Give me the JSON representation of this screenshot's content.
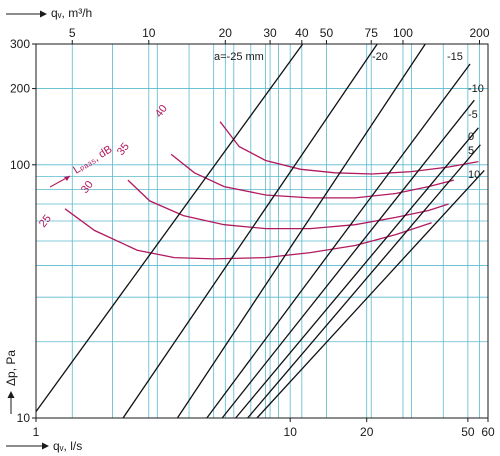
{
  "chart_data": {
    "type": "line",
    "title": "",
    "x_axis_bottom": {
      "label": "qᵥ, l/s",
      "scale": "log",
      "range": [
        1,
        60
      ],
      "ticks": [
        {
          "v": 1,
          "label": "1"
        },
        {
          "v": 10,
          "label": "10"
        },
        {
          "v": 20,
          "label": "20"
        },
        {
          "v": 50,
          "label": "50"
        },
        {
          "v": 60,
          "label": "60"
        }
      ]
    },
    "x_axis_top": {
      "label": "qᵥ, m³/h",
      "scale": "log",
      "range": [
        3.6,
        216
      ],
      "ticks": [
        {
          "v": 5,
          "label": "5"
        },
        {
          "v": 10,
          "label": "10"
        },
        {
          "v": 20,
          "label": "20"
        },
        {
          "v": 30,
          "label": "30"
        },
        {
          "v": 40,
          "label": "40"
        },
        {
          "v": 50,
          "label": "50"
        },
        {
          "v": 75,
          "label": "75"
        },
        {
          "v": 100,
          "label": "100"
        },
        {
          "v": 200,
          "label": "200"
        }
      ]
    },
    "y_axis": {
      "label": "Δp, Pa",
      "scale": "log",
      "range": [
        10,
        300
      ],
      "ticks": [
        {
          "v": 10,
          "label": "10"
        },
        {
          "v": 100,
          "label": "100"
        },
        {
          "v": 200,
          "label": "200"
        },
        {
          "v": 300,
          "label": "300"
        }
      ]
    },
    "grid": true,
    "damper_lines": [
      {
        "label": "a=-25 mm",
        "points": [
          [
            1,
            10.6
          ],
          [
            11.2,
            300
          ]
        ]
      },
      {
        "label": "-20",
        "points": [
          [
            2.2,
            10
          ],
          [
            22,
            300
          ]
        ]
      },
      {
        "label": "-15",
        "points": [
          [
            3.6,
            10
          ],
          [
            34,
            300
          ]
        ]
      },
      {
        "label": "-10",
        "points": [
          [
            4.7,
            10
          ],
          [
            51,
            250
          ]
        ]
      },
      {
        "label": "-5",
        "points": [
          [
            5.4,
            10
          ],
          [
            53,
            180
          ]
        ]
      },
      {
        "label": "0",
        "points": [
          [
            6.1,
            10
          ],
          [
            55,
            140
          ]
        ]
      },
      {
        "label": "5",
        "points": [
          [
            6.8,
            10
          ],
          [
            56,
            120
          ]
        ]
      },
      {
        "label": "10",
        "points": [
          [
            7.4,
            10
          ],
          [
            58,
            95
          ]
        ]
      }
    ],
    "sound_level": {
      "label": "Lₚₐ₃₅, dB",
      "series": [
        {
          "name": "25",
          "points": [
            [
              1.3,
              67
            ],
            [
              1.7,
              55
            ],
            [
              2.5,
              46
            ],
            [
              3.5,
              43
            ],
            [
              5,
              42.5
            ],
            [
              8,
              43
            ],
            [
              12,
              45
            ],
            [
              18,
              48
            ],
            [
              26,
              53
            ],
            [
              36,
              59
            ]
          ]
        },
        {
          "name": "30",
          "points": [
            [
              2.3,
              87
            ],
            [
              2.8,
              72
            ],
            [
              3.8,
              63
            ],
            [
              5.5,
              58
            ],
            [
              8,
              56
            ],
            [
              12,
              56
            ],
            [
              18,
              58
            ],
            [
              26,
              62
            ],
            [
              35,
              66
            ],
            [
              42,
              70
            ]
          ]
        },
        {
          "name": "35",
          "points": [
            [
              3.4,
              110
            ],
            [
              4.2,
              93
            ],
            [
              5.5,
              82
            ],
            [
              8,
              76
            ],
            [
              12,
              74
            ],
            [
              18,
              74
            ],
            [
              26,
              77
            ],
            [
              35,
              82
            ],
            [
              44,
              87
            ]
          ]
        },
        {
          "name": "40",
          "points": [
            [
              5.3,
              148
            ],
            [
              6.3,
              118
            ],
            [
              8,
              104
            ],
            [
              11,
              96
            ],
            [
              15,
              93
            ],
            [
              21,
              92
            ],
            [
              30,
              94
            ],
            [
              42,
              98
            ],
            [
              55,
              103
            ]
          ]
        }
      ]
    }
  }
}
